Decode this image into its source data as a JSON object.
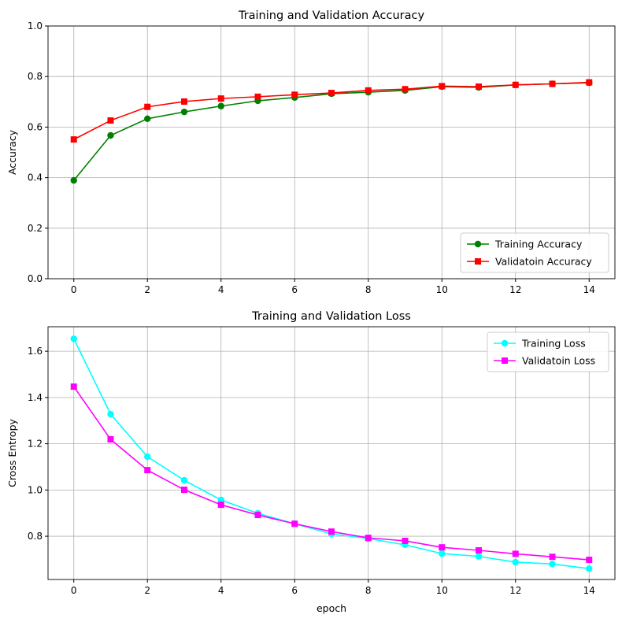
{
  "chart_data": [
    {
      "type": "line",
      "title": "Training and Validation Accuracy",
      "xlabel": "",
      "ylabel": "Accuracy",
      "xlim": [
        -0.7,
        14.7
      ],
      "ylim": [
        0,
        1.0
      ],
      "xticks": [
        0,
        2,
        4,
        6,
        8,
        10,
        12,
        14
      ],
      "yticks": [
        0.0,
        0.2,
        0.4,
        0.6,
        0.8,
        1.0
      ],
      "ytick_labels": [
        "0.0",
        "0.2",
        "0.4",
        "0.6",
        "0.8",
        "1.0"
      ],
      "grid": true,
      "legend": "lower-right",
      "x": [
        0,
        1,
        2,
        3,
        4,
        5,
        6,
        7,
        8,
        9,
        10,
        11,
        12,
        13,
        14
      ],
      "series": [
        {
          "name": "Training Accuracy",
          "color": "#008000",
          "marker": "circle",
          "values": [
            0.389,
            0.567,
            0.633,
            0.66,
            0.683,
            0.704,
            0.717,
            0.732,
            0.738,
            0.745,
            0.76,
            0.757,
            0.767,
            0.771,
            0.775
          ]
        },
        {
          "name": "Validatoin Accuracy",
          "color": "#ff0000",
          "marker": "square",
          "values": [
            0.551,
            0.626,
            0.68,
            0.701,
            0.713,
            0.72,
            0.728,
            0.735,
            0.745,
            0.75,
            0.762,
            0.76,
            0.767,
            0.771,
            0.777
          ]
        }
      ]
    },
    {
      "type": "line",
      "title": "Training and Validation Loss",
      "xlabel": "epoch",
      "ylabel": "Cross Entropy",
      "xlim": [
        -0.7,
        14.7
      ],
      "ylim": [
        0.613,
        1.706
      ],
      "xticks": [
        0,
        2,
        4,
        6,
        8,
        10,
        12,
        14
      ],
      "yticks": [
        0.8,
        1.0,
        1.2,
        1.4,
        1.6
      ],
      "ytick_labels": [
        "0.8",
        "1.0",
        "1.2",
        "1.4",
        "1.6"
      ],
      "grid": true,
      "legend": "upper-right",
      "x": [
        0,
        1,
        2,
        3,
        4,
        5,
        6,
        7,
        8,
        9,
        10,
        11,
        12,
        13,
        14
      ],
      "series": [
        {
          "name": "Training Loss",
          "color": "#00ffff",
          "marker": "circle",
          "values": [
            1.654,
            1.328,
            1.144,
            1.042,
            0.957,
            0.899,
            0.854,
            0.81,
            0.79,
            0.763,
            0.725,
            0.713,
            0.688,
            0.68,
            0.66
          ]
        },
        {
          "name": "Validatoin Loss",
          "color": "#ff00ff",
          "marker": "square",
          "values": [
            1.447,
            1.219,
            1.086,
            1.001,
            0.936,
            0.892,
            0.854,
            0.82,
            0.793,
            0.78,
            0.752,
            0.739,
            0.724,
            0.711,
            0.698
          ]
        }
      ]
    }
  ]
}
